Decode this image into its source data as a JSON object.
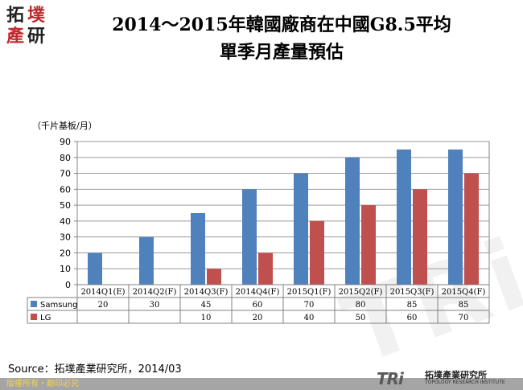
{
  "logo": {
    "c1": "拓",
    "c2": "墣",
    "c3": "產",
    "c4": "研"
  },
  "title_line1": "2014～2015年韓國廠商在中國G8.5平均",
  "title_line2": "單季月產量預估",
  "unit": "（千片基板/月）",
  "source": "Source：拓墣產業研究所，2014/03",
  "footer_left": "版權所有・翻印必究",
  "tri_logo": "TRi",
  "tri_name": "拓墣產業研究所",
  "tri_sub": "TOPOLOGY RESEARCH INSTITUTE",
  "colors": {
    "samsung": "#4f81bd",
    "lg": "#c0504d"
  },
  "chart_data": {
    "type": "bar",
    "categories": [
      "2014Q1(E)",
      "2014Q2(F)",
      "2014Q3(F)",
      "2014Q4(F)",
      "2015Q1(F)",
      "2015Q2(F)",
      "2015Q3(F)",
      "2015Q4(F)"
    ],
    "series": [
      {
        "name": "Samsung",
        "values": [
          20,
          30,
          45,
          60,
          70,
          80,
          85,
          85
        ]
      },
      {
        "name": "LG",
        "values": [
          null,
          null,
          10,
          20,
          40,
          50,
          60,
          70
        ]
      }
    ],
    "ylim": [
      0,
      90
    ],
    "yticks": [
      0,
      10,
      20,
      30,
      40,
      50,
      60,
      70,
      80,
      90
    ],
    "grid": true,
    "legend": "data-table"
  }
}
